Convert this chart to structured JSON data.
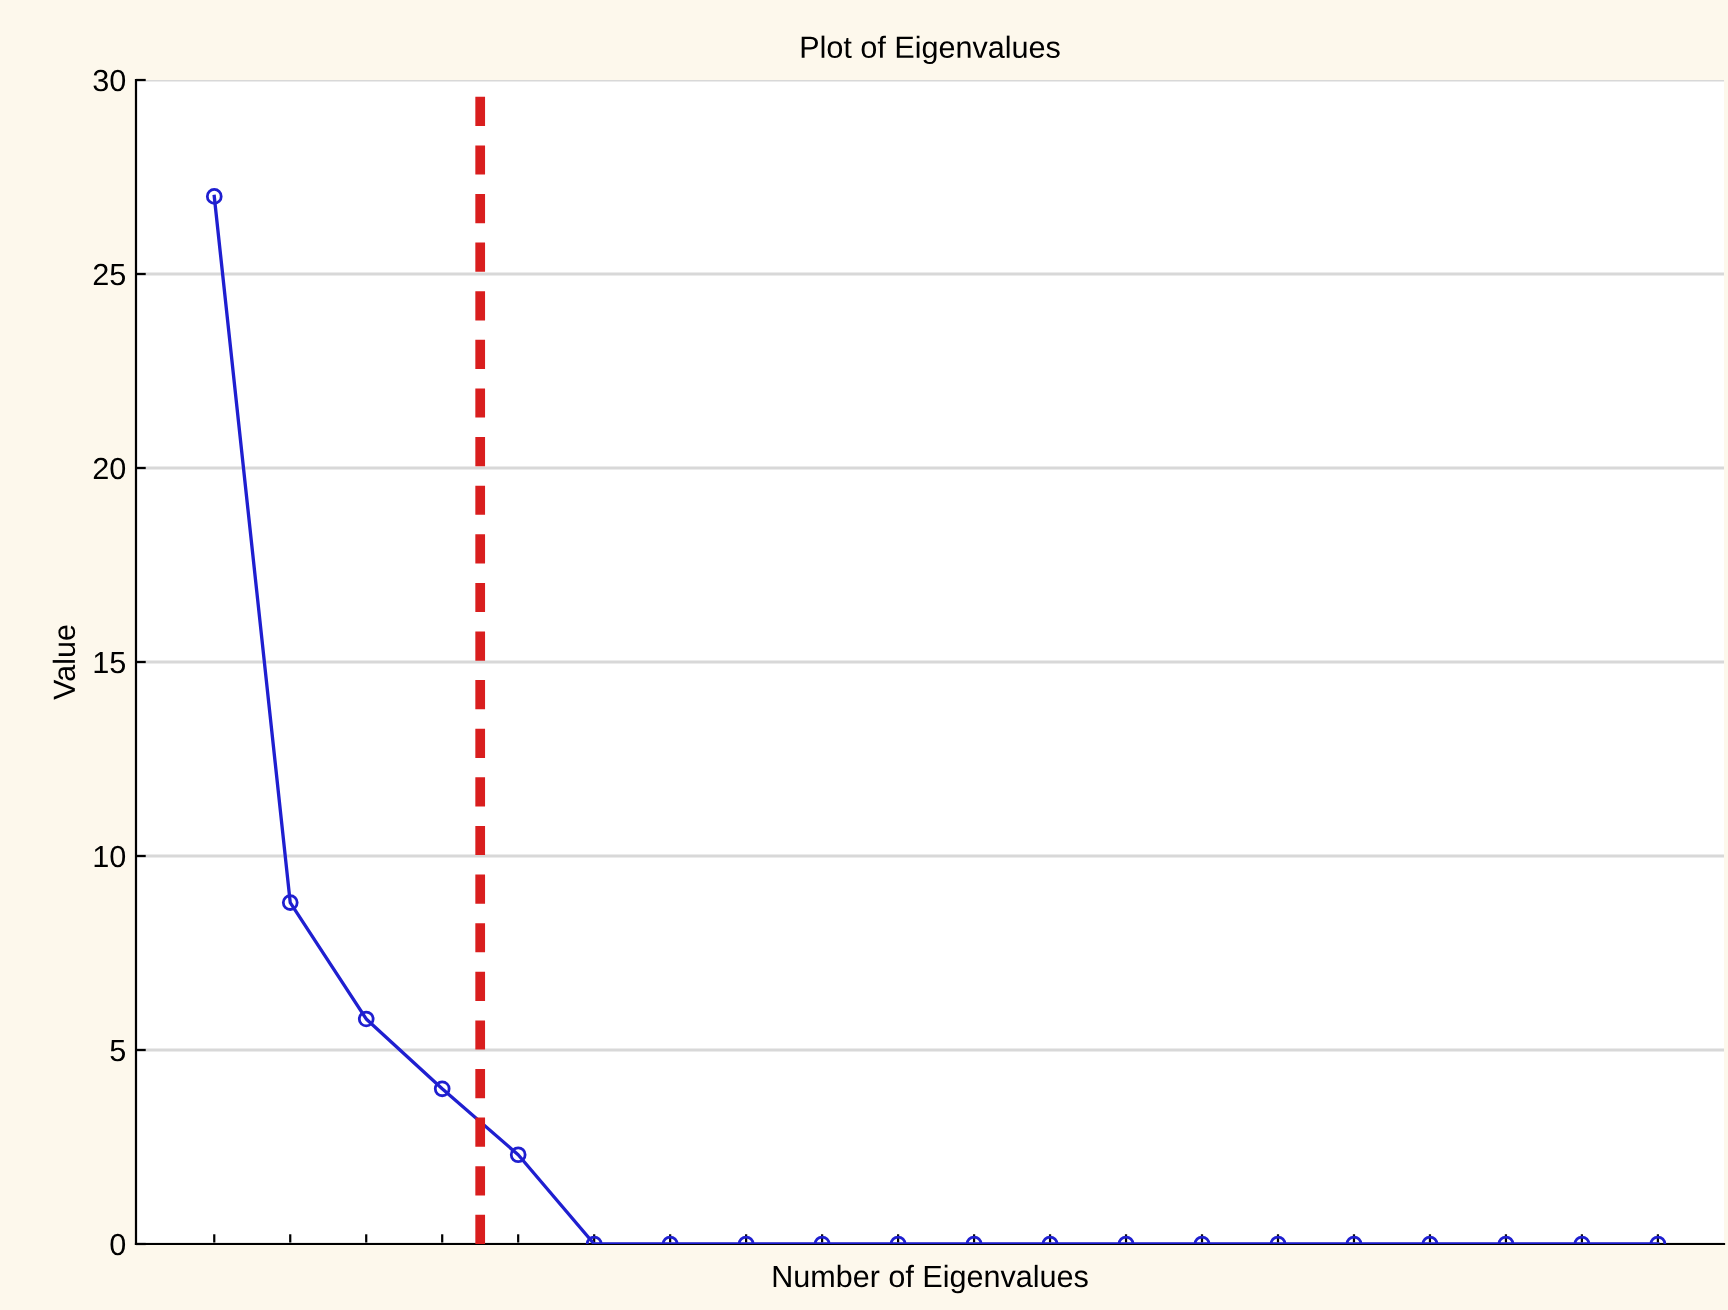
{
  "chart_data": {
    "type": "line",
    "title": "Plot of Eigenvalues",
    "xlabel": "Number of Eigenvalues",
    "ylabel": "Value",
    "categories": [
      null,
      null,
      null,
      null,
      null,
      null,
      null,
      null,
      null,
      null,
      null,
      null,
      null,
      null,
      null,
      null,
      null,
      null,
      null,
      null
    ],
    "series": [
      {
        "color": "#1f1fd0",
        "values": [
          27,
          8.8,
          5.8,
          4.0,
          2.3,
          0,
          0,
          0,
          0,
          0,
          0,
          0,
          0,
          0,
          0,
          0,
          0,
          0,
          0,
          0
        ]
      }
    ],
    "ylim": [
      0,
      30
    ],
    "yticks": [
      0,
      5,
      10,
      15,
      20,
      25,
      30
    ],
    "grid": "y",
    "marker": "circle",
    "line_style": "solid",
    "legend": false
  }
}
